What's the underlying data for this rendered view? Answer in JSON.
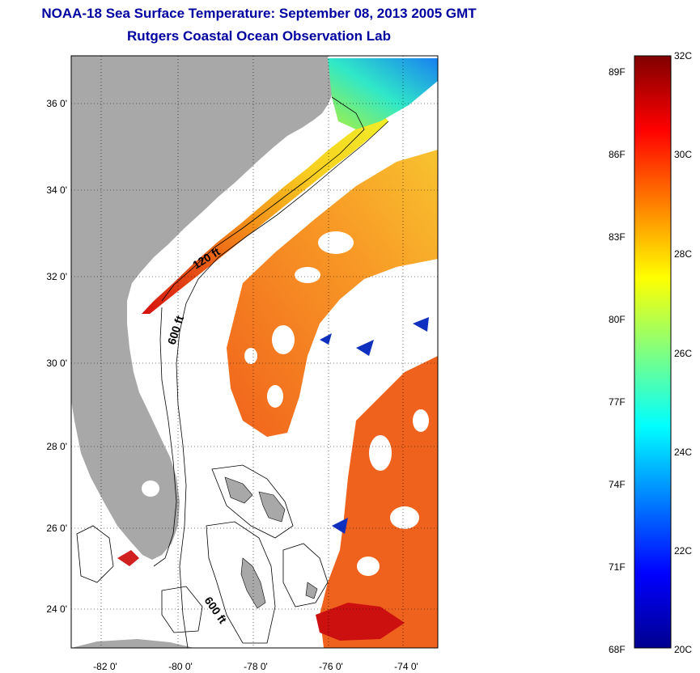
{
  "title": {
    "line1": "NOAA-18 Sea Surface Temperature:  September 08, 2013 2005 GMT",
    "line2": "Rutgers Coastal Ocean Observation Lab"
  },
  "map": {
    "lat_labels": [
      "36 0'",
      "34 0'",
      "32 0'",
      "30 0'",
      "28 0'",
      "26 0'",
      "24 0'"
    ],
    "lon_labels": [
      "-82 0'",
      "-80 0'",
      "-78 0'",
      "-76 0'",
      "-74 0'"
    ],
    "isobath_labels": [
      "120 ft",
      "600 ft",
      "600 ft"
    ],
    "land_color": "#a8a8a8"
  },
  "colorbar": {
    "fahrenheit_labels": [
      "89F",
      "86F",
      "83F",
      "80F",
      "77F",
      "74F",
      "71F",
      "68F"
    ],
    "celsius_labels": [
      "32C",
      "30C",
      "28C",
      "26C",
      "24C",
      "22C",
      "20C"
    ],
    "range_c": [
      20,
      32
    ],
    "colormap": "jet"
  }
}
